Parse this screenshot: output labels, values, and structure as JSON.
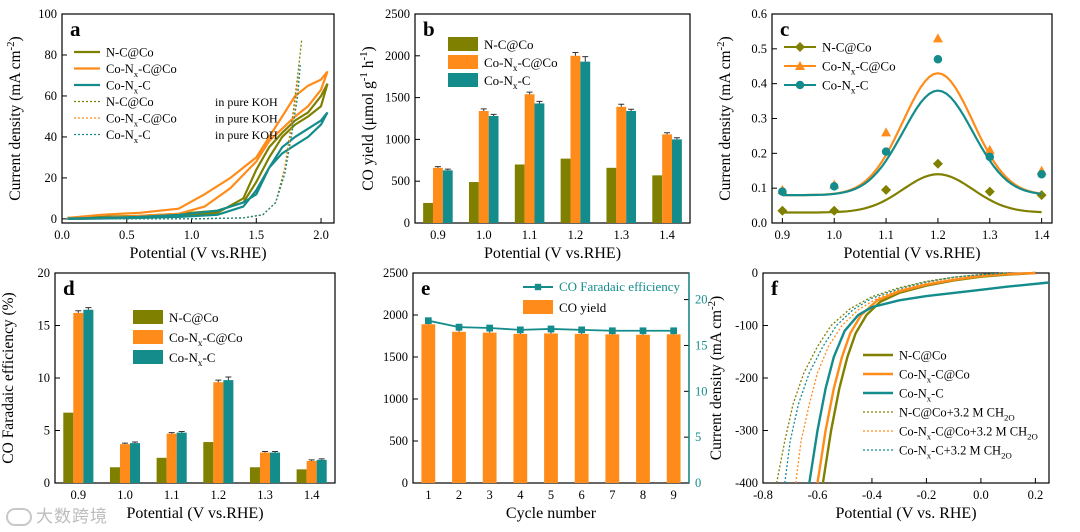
{
  "colors": {
    "nc": "#808000",
    "conx": "#FF8C1A",
    "coc": "#148C8C",
    "axis": "#000000"
  },
  "watermark": {
    "text": "大数跨境",
    "icon": "logo-icon"
  },
  "chart_data": [
    {
      "id": "a",
      "type": "line",
      "panel_label": "a",
      "xlabel": "Potential (V vs.RHE)",
      "ylabel": "Current density (mA cm^-2)",
      "xlim": [
        0,
        2.1
      ],
      "ylim": [
        -2,
        100
      ],
      "xticks": [
        0.0,
        0.5,
        1.0,
        1.5,
        2.0
      ],
      "yticks": [
        0,
        20,
        40,
        60,
        80,
        100
      ],
      "legend_position": "top-left",
      "series": [
        {
          "name": "N-C@Co",
          "color": "#808000",
          "style": "solid",
          "closed": true,
          "x": [
            0.05,
            0.3,
            0.6,
            0.9,
            1.2,
            1.4,
            1.5,
            1.6,
            1.7,
            1.8,
            1.9,
            2.0,
            2.05,
            2.0,
            1.9,
            1.8,
            1.7,
            1.6,
            1.5,
            1.4,
            1.2,
            0.9,
            0.6,
            0.3,
            0.05
          ],
          "y": [
            0.5,
            1,
            1.5,
            2.5,
            4,
            8,
            18,
            30,
            40,
            46,
            50,
            55,
            66,
            60,
            52,
            48,
            42,
            35,
            24,
            10,
            3,
            1.5,
            0.8,
            0.3,
            0
          ]
        },
        {
          "name": "Co-N_x-C@Co",
          "color": "#FF8C1A",
          "style": "solid",
          "closed": true,
          "x": [
            0.05,
            0.3,
            0.6,
            0.9,
            1.1,
            1.3,
            1.5,
            1.6,
            1.7,
            1.8,
            1.9,
            2.0,
            2.05,
            2.0,
            1.9,
            1.8,
            1.7,
            1.6,
            1.5,
            1.3,
            1.1,
            0.9,
            0.6,
            0.3,
            0.05
          ],
          "y": [
            0.5,
            2,
            3,
            5,
            12,
            20,
            30,
            40,
            50,
            60,
            65,
            68,
            72,
            63,
            55,
            50,
            44,
            38,
            28,
            15,
            6,
            2.5,
            1.5,
            0.5,
            0
          ]
        },
        {
          "name": "Co-N_x-C",
          "color": "#148C8C",
          "style": "solid",
          "closed": true,
          "x": [
            0.05,
            0.3,
            0.6,
            0.9,
            1.2,
            1.4,
            1.5,
            1.6,
            1.7,
            1.8,
            1.9,
            2.0,
            2.05,
            2.0,
            1.9,
            1.8,
            1.7,
            1.6,
            1.5,
            1.4,
            1.2,
            0.9,
            0.6,
            0.3,
            0.05
          ],
          "y": [
            0.2,
            0.5,
            1,
            2,
            4,
            8,
            12,
            25,
            35,
            40,
            44,
            48,
            52,
            46,
            40,
            36,
            32,
            25,
            14,
            6,
            2,
            1,
            0.5,
            0.2,
            0
          ]
        },
        {
          "name": "N-C@Co",
          "suffix": "in pure KOH",
          "color": "#808000",
          "style": "dotted",
          "closed": false,
          "x": [
            0.1,
            0.5,
            1.0,
            1.4,
            1.55,
            1.65,
            1.72,
            1.78,
            1.82,
            1.85
          ],
          "y": [
            0,
            0,
            0,
            0.5,
            2,
            8,
            25,
            50,
            70,
            87
          ]
        },
        {
          "name": "Co-N_x-C@Co",
          "suffix": "in pure KOH",
          "color": "#FF8C1A",
          "style": "dotted",
          "closed": false,
          "x": [
            0.1,
            0.5,
            1.0,
            1.4,
            1.55,
            1.65,
            1.7,
            1.75,
            1.8,
            1.83
          ],
          "y": [
            0,
            0,
            0,
            0.5,
            2,
            8,
            18,
            35,
            55,
            70
          ]
        },
        {
          "name": "Co-N_x-C",
          "suffix": "in pure KOH",
          "color": "#148C8C",
          "style": "dotted",
          "closed": false,
          "x": [
            0.1,
            0.5,
            1.0,
            1.4,
            1.55,
            1.65,
            1.72,
            1.77,
            1.82,
            1.84
          ],
          "y": [
            0,
            0,
            0,
            0.5,
            2,
            8,
            22,
            40,
            60,
            75
          ]
        }
      ]
    },
    {
      "id": "b",
      "type": "bar",
      "panel_label": "b",
      "xlabel": "Potential (V vs.RHE)",
      "ylabel": "CO yield (μmol g^-1 h^-1)",
      "categories": [
        "0.9",
        "1.0",
        "1.1",
        "1.2",
        "1.3",
        "1.4"
      ],
      "ylim": [
        0,
        2500
      ],
      "yticks": [
        0,
        500,
        1000,
        1500,
        2000,
        2500
      ],
      "legend_position": "top-left",
      "series": [
        {
          "name": "N-C@Co",
          "color": "#808000",
          "values": [
            240,
            490,
            700,
            770,
            660,
            570
          ],
          "errors": [
            0,
            0,
            0,
            0,
            0,
            0
          ]
        },
        {
          "name": "Co-N_x-C@Co",
          "color": "#FF8C1A",
          "values": [
            660,
            1340,
            1540,
            2000,
            1390,
            1060
          ],
          "errors": [
            15,
            25,
            25,
            40,
            30,
            20
          ]
        },
        {
          "name": "Co-N_x-C",
          "color": "#148C8C",
          "values": [
            630,
            1280,
            1430,
            1930,
            1340,
            1000
          ],
          "errors": [
            15,
            20,
            25,
            60,
            20,
            20
          ]
        }
      ]
    },
    {
      "id": "c",
      "type": "scatter",
      "panel_label": "c",
      "xlabel": "Potential (V vs.RHE)",
      "ylabel": "Current density (mA cm^-2)",
      "xlim": [
        0.88,
        1.42
      ],
      "ylim": [
        0,
        0.6
      ],
      "xticks": [
        0.9,
        1.0,
        1.1,
        1.2,
        1.3,
        1.4
      ],
      "yticks": [
        0.0,
        0.1,
        0.2,
        0.3,
        0.4,
        0.5,
        0.6
      ],
      "legend_position": "top-left",
      "series": [
        {
          "name": "N-C@Co",
          "color": "#808000",
          "marker": "diamond",
          "x": [
            0.9,
            1.0,
            1.1,
            1.2,
            1.3,
            1.4
          ],
          "y": [
            0.035,
            0.035,
            0.095,
            0.17,
            0.09,
            0.08
          ],
          "fit_peak": 0.14,
          "fit_base": 0.03
        },
        {
          "name": "Co-N_x-C@Co",
          "color": "#FF8C1A",
          "marker": "triangle",
          "x": [
            0.9,
            1.0,
            1.1,
            1.2,
            1.3,
            1.4
          ],
          "y": [
            0.095,
            0.11,
            0.26,
            0.53,
            0.21,
            0.15
          ],
          "fit_peak": 0.43,
          "fit_base": 0.08
        },
        {
          "name": "Co-N_x-C",
          "color": "#148C8C",
          "marker": "circle",
          "x": [
            0.9,
            1.0,
            1.1,
            1.2,
            1.3,
            1.4
          ],
          "y": [
            0.09,
            0.105,
            0.205,
            0.47,
            0.19,
            0.14
          ],
          "fit_peak": 0.38,
          "fit_base": 0.08
        }
      ]
    },
    {
      "id": "d",
      "type": "bar",
      "panel_label": "d",
      "xlabel": "Potential (V vs.RHE)",
      "ylabel": "CO Faradaic efficiency (%)",
      "categories": [
        "0.9",
        "1.0",
        "1.1",
        "1.2",
        "1.3",
        "1.4"
      ],
      "ylim": [
        0,
        20
      ],
      "yticks": [
        0,
        5,
        10,
        15,
        20
      ],
      "legend_position": "top-center",
      "series": [
        {
          "name": "N-C@Co",
          "color": "#808000",
          "values": [
            6.7,
            1.5,
            2.4,
            3.9,
            1.5,
            1.3
          ],
          "errors": [
            0,
            0,
            0,
            0,
            0,
            0
          ]
        },
        {
          "name": "Co-N_x-C@Co",
          "color": "#FF8C1A",
          "values": [
            16.2,
            3.7,
            4.7,
            9.6,
            2.9,
            2.1
          ],
          "errors": [
            0.2,
            0.1,
            0.1,
            0.2,
            0.1,
            0.1
          ]
        },
        {
          "name": "Co-N_x-C",
          "color": "#148C8C",
          "values": [
            16.5,
            3.8,
            4.8,
            9.8,
            2.9,
            2.2
          ],
          "errors": [
            0.2,
            0.1,
            0.1,
            0.3,
            0.1,
            0.1
          ]
        }
      ]
    },
    {
      "id": "e",
      "type": "bar",
      "panel_label": "e",
      "xlabel": "Cycle number",
      "ylabel_left": "",
      "ylabel_right": "",
      "categories": [
        "1",
        "2",
        "3",
        "4",
        "5",
        "6",
        "7",
        "8",
        "9"
      ],
      "ylim": [
        0,
        2500
      ],
      "yticks": [
        0,
        500,
        1000,
        1500,
        2000,
        2500
      ],
      "ylim_right": [
        0,
        22.9
      ],
      "yticks_right": [
        0,
        5,
        10,
        15,
        20
      ],
      "legend_position": "top-right",
      "bar_series": {
        "name": "CO yield",
        "color": "#FF8C1A",
        "values": [
          1890,
          1800,
          1790,
          1775,
          1780,
          1775,
          1770,
          1765,
          1770
        ],
        "errors": [
          25,
          20,
          20,
          20,
          20,
          20,
          20,
          20,
          20
        ]
      },
      "line_series": {
        "name": "CO Faradaic efficiency",
        "color": "#148C8C",
        "marker": "square",
        "values": [
          17.7,
          17.0,
          16.9,
          16.7,
          16.8,
          16.7,
          16.6,
          16.6,
          16.6
        ]
      }
    },
    {
      "id": "f",
      "type": "line",
      "panel_label": "f",
      "xlabel": "Potential (V vs. RHE)",
      "ylabel": "Current density (mA cm^-2)",
      "xlim": [
        -0.8,
        0.25
      ],
      "ylim": [
        -400,
        0
      ],
      "xticks": [
        -0.8,
        -0.6,
        -0.4,
        -0.2,
        0.0,
        0.2
      ],
      "yticks": [
        0,
        -100,
        -200,
        -300,
        -400
      ],
      "legend_position": "bottom-right",
      "series": [
        {
          "name": "N-C@Co",
          "color": "#808000",
          "style": "solid",
          "x": [
            -0.58,
            -0.55,
            -0.52,
            -0.49,
            -0.46,
            -0.42,
            -0.37,
            -0.3,
            -0.2,
            -0.1,
            0.0,
            0.1,
            0.2
          ],
          "y": [
            -400,
            -300,
            -220,
            -160,
            -115,
            -80,
            -55,
            -38,
            -24,
            -14,
            -7,
            -3,
            0
          ]
        },
        {
          "name": "Co-N_x-C@Co",
          "color": "#FF8C1A",
          "style": "solid",
          "x": [
            -0.6,
            -0.57,
            -0.54,
            -0.51,
            -0.48,
            -0.44,
            -0.38,
            -0.3,
            -0.2,
            -0.1,
            0.0,
            0.1,
            0.2
          ],
          "y": [
            -400,
            -300,
            -220,
            -160,
            -115,
            -80,
            -52,
            -35,
            -22,
            -13,
            -6,
            -2,
            0
          ]
        },
        {
          "name": "Co-N_x-C",
          "color": "#148C8C",
          "style": "solid",
          "x": [
            -0.63,
            -0.6,
            -0.57,
            -0.54,
            -0.5,
            -0.45,
            -0.4,
            -0.3,
            -0.2,
            -0.1,
            0.0,
            0.1,
            0.25
          ],
          "y": [
            -400,
            -300,
            -220,
            -160,
            -110,
            -80,
            -65,
            -52,
            -44,
            -38,
            -32,
            -26,
            -18
          ]
        },
        {
          "name": "N-C@Co+3.2 M CH_2O",
          "color": "#808000",
          "style": "dotted",
          "x": [
            -0.75,
            -0.72,
            -0.69,
            -0.65,
            -0.6,
            -0.55,
            -0.48,
            -0.4,
            -0.3,
            -0.2,
            -0.1,
            0.0,
            0.1
          ],
          "y": [
            -400,
            -320,
            -250,
            -190,
            -140,
            -100,
            -68,
            -45,
            -28,
            -16,
            -8,
            -3,
            0
          ]
        },
        {
          "name": "Co-N_x-C@Co+3.2 M CH_2O",
          "color": "#FF8C1A",
          "style": "dotted",
          "x": [
            -0.68,
            -0.66,
            -0.63,
            -0.6,
            -0.56,
            -0.51,
            -0.45,
            -0.38,
            -0.3,
            -0.2,
            -0.1,
            0.0,
            0.1
          ],
          "y": [
            -400,
            -320,
            -250,
            -190,
            -140,
            -100,
            -70,
            -48,
            -32,
            -18,
            -9,
            -3,
            0
          ]
        },
        {
          "name": "Co-N_x-C+3.2 M CH_2O",
          "color": "#148C8C",
          "style": "dotted",
          "x": [
            -0.72,
            -0.7,
            -0.67,
            -0.63,
            -0.58,
            -0.53,
            -0.47,
            -0.4,
            -0.3,
            -0.2,
            -0.1,
            0.0,
            0.1
          ],
          "y": [
            -400,
            -320,
            -250,
            -190,
            -140,
            -100,
            -70,
            -48,
            -30,
            -17,
            -8,
            -3,
            0
          ]
        }
      ]
    }
  ]
}
